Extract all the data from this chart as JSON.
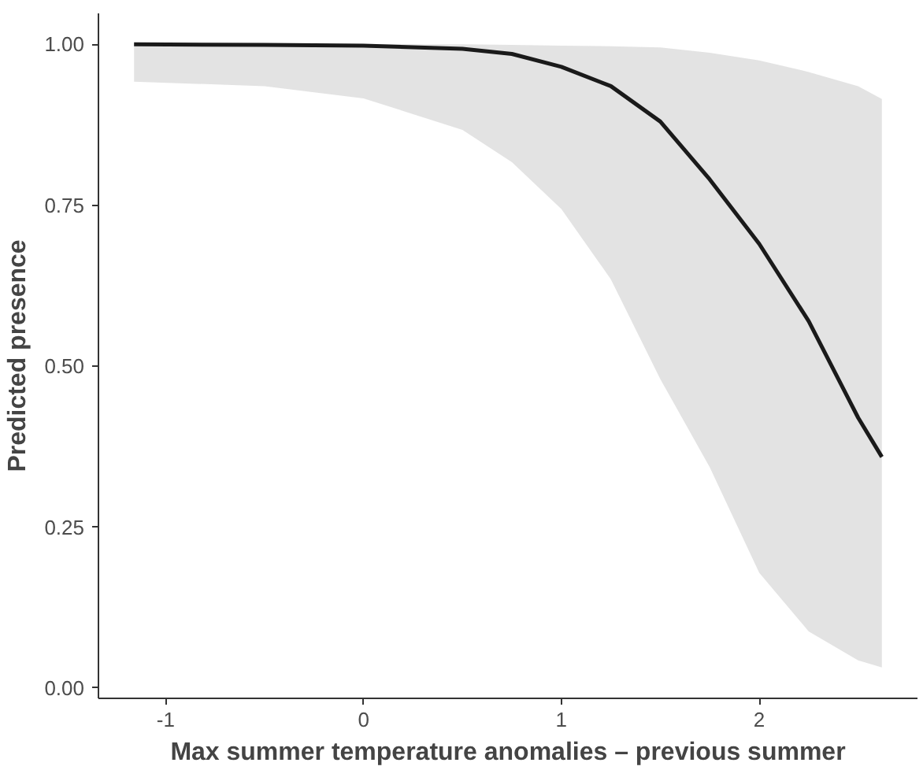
{
  "chart_data": {
    "type": "line",
    "xlabel": "Max summer temperature anomalies – previous summer",
    "ylabel": "Predicted presence",
    "x": [
      -1.16,
      -0.5,
      0,
      0.5,
      0.75,
      1,
      1.25,
      1.5,
      1.75,
      2,
      2.25,
      2.5,
      2.62
    ],
    "series": [
      {
        "color": "#1a1a1a",
        "values": [
          1.0,
          0.999,
          0.998,
          0.993,
          0.985,
          0.965,
          0.935,
          0.88,
          0.79,
          0.69,
          0.57,
          0.42,
          0.359
        ],
        "lower": [
          0.942,
          0.935,
          0.916,
          0.867,
          0.817,
          0.744,
          0.635,
          0.48,
          0.343,
          0.179,
          0.088,
          0.043,
          0.032
        ],
        "upper": [
          1.0,
          1.0,
          1.0,
          1.0,
          0.999,
          0.998,
          0.997,
          0.995,
          0.987,
          0.975,
          0.957,
          0.935,
          0.915
        ]
      }
    ],
    "xlim": [
      -1.34,
      2.8
    ],
    "ylim": [
      -0.016,
      1.048
    ],
    "xticks": [
      -1,
      0,
      1,
      2
    ],
    "yticks": [
      {
        "value": 0,
        "label": "0.00"
      },
      {
        "value": 0.25,
        "label": "0.25"
      },
      {
        "value": 0.5,
        "label": "0.50"
      },
      {
        "value": 0.75,
        "label": "0.75"
      },
      {
        "value": 1,
        "label": "1.00"
      }
    ],
    "grid": false
  }
}
